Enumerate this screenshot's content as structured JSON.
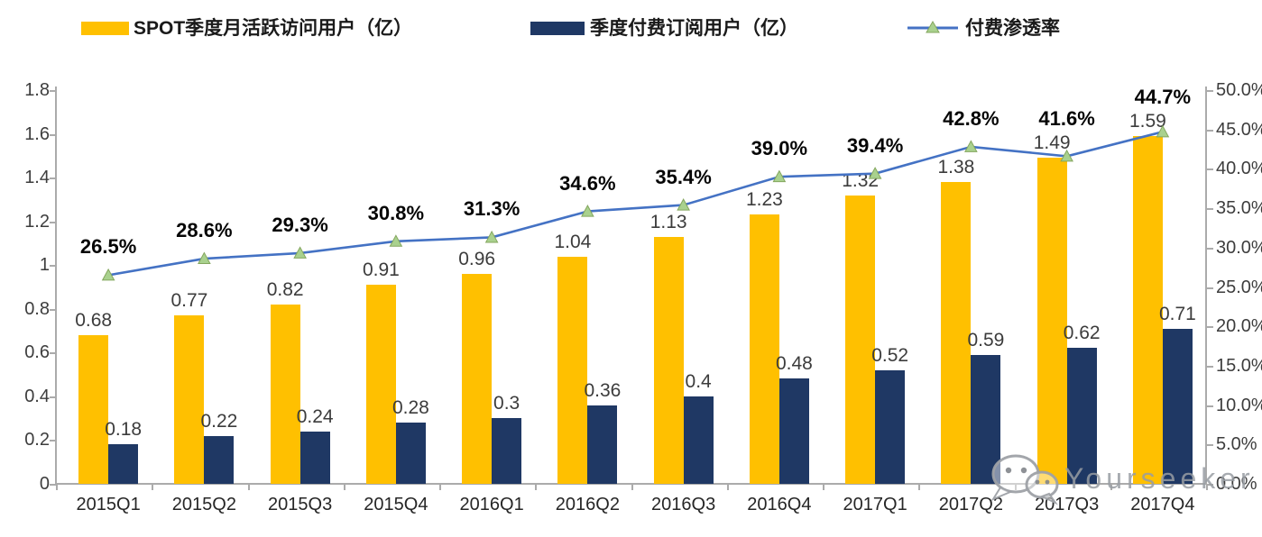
{
  "legend": {
    "items": [
      {
        "label": "SPOT季度月活跃访问用户（亿）",
        "color": "#FFC000",
        "type": "bar"
      },
      {
        "label": "季度付费订阅用户（亿）",
        "color": "#1F3864",
        "type": "bar"
      },
      {
        "label": "付费渗透率",
        "color": "#4472C4",
        "marker_color": "#A9D18E",
        "type": "line"
      }
    ]
  },
  "chart_data": {
    "type": "bar+line combo",
    "categories": [
      "2015Q1",
      "2015Q2",
      "2015Q3",
      "2015Q4",
      "2016Q1",
      "2016Q2",
      "2016Q3",
      "2016Q4",
      "2017Q1",
      "2017Q2",
      "2017Q3",
      "2017Q4"
    ],
    "series": [
      {
        "name": "SPOT季度月活跃访问用户（亿）",
        "type": "bar",
        "axis": "left",
        "color": "#FFC000",
        "values": [
          0.68,
          0.77,
          0.82,
          0.91,
          0.96,
          1.04,
          1.13,
          1.23,
          1.32,
          1.38,
          1.49,
          1.59
        ],
        "labels": [
          "0.68",
          "0.77",
          "0.82",
          "0.91",
          "0.96",
          "1.04",
          "1.13",
          "1.23",
          "1.32",
          "1.38",
          "1.49",
          "1.59"
        ]
      },
      {
        "name": "季度付费订阅用户（亿）",
        "type": "bar",
        "axis": "left",
        "color": "#1F3864",
        "values": [
          0.18,
          0.22,
          0.24,
          0.28,
          0.3,
          0.36,
          0.4,
          0.48,
          0.52,
          0.59,
          0.62,
          0.71
        ],
        "labels": [
          "0.18",
          "0.22",
          "0.24",
          "0.28",
          "0.3",
          "0.36",
          "0.4",
          "0.48",
          "0.52",
          "0.59",
          "0.62",
          "0.71"
        ]
      },
      {
        "name": "付费渗透率",
        "type": "line",
        "axis": "right",
        "color": "#4472C4",
        "marker": "triangle",
        "marker_color": "#A9D18E",
        "values": [
          26.5,
          28.6,
          29.3,
          30.8,
          31.3,
          34.6,
          35.4,
          39.0,
          39.4,
          42.8,
          41.6,
          44.7
        ],
        "labels": [
          "26.5%",
          "28.6%",
          "29.3%",
          "30.8%",
          "31.3%",
          "34.6%",
          "35.4%",
          "39.0%",
          "39.4%",
          "42.8%",
          "41.6%",
          "44.7%"
        ]
      }
    ],
    "left_axis": {
      "min": 0,
      "max": 1.8,
      "ticks": [
        "1.8",
        "1.6",
        "1.4",
        "1.2",
        "1",
        "0.8",
        "0.6",
        "0.4",
        "0.2",
        "0"
      ]
    },
    "right_axis": {
      "min": 0,
      "max": 50,
      "ticks": [
        "50.0%",
        "45.0%",
        "40.0%",
        "35.0%",
        "30.0%",
        "25.0%",
        "20.0%",
        "15.0%",
        "10.0%",
        "5.0%",
        "0.0%"
      ]
    },
    "grid": false,
    "legend_position": "top",
    "title": ""
  },
  "watermark": {
    "text": "Yourseeker",
    "icon": "wechat-chat-bubbles-icon"
  },
  "colors": {
    "axis": "#ababab",
    "value_label": "#3c3c3c",
    "pct_label": "#050505",
    "tick_label": "#3d3d3d"
  }
}
